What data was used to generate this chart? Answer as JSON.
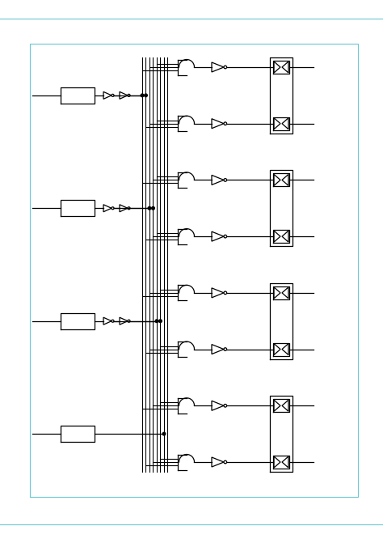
{
  "bg_color": "#ffffff",
  "border_outer_color": "#6bc8d4",
  "border_inner_color": "#6bc8d4",
  "line_color": "#000000",
  "fig_width": 4.74,
  "fig_height": 6.71,
  "lw": 0.9
}
